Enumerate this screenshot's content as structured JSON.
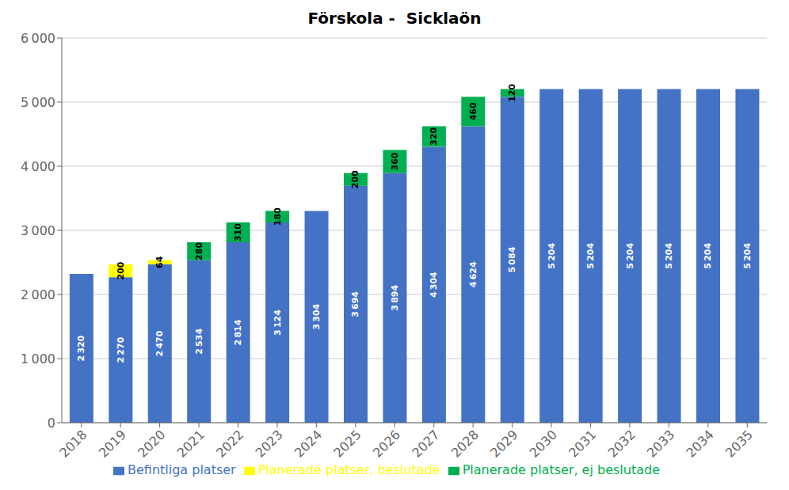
{
  "chart_data": {
    "type": "bar",
    "title": "Förskola -  Sicklaön",
    "categories": [
      "2018",
      "2019",
      "2020",
      "2021",
      "2022",
      "2023",
      "2024",
      "2025",
      "2026",
      "2027",
      "2028",
      "2029",
      "2030",
      "2031",
      "2032",
      "2033",
      "2034",
      "2035"
    ],
    "series": [
      {
        "name": "Befintliga platser",
        "color": "#4472C4",
        "values": [
          2320,
          2270,
          2470,
          2534,
          2814,
          3124,
          3304,
          3694,
          3894,
          4304,
          4624,
          5084,
          5204,
          5204,
          5204,
          5204,
          5204,
          5204
        ],
        "value_labels": [
          "2 320",
          "2 270",
          "2 470",
          "2 534",
          "2 814",
          "3 124",
          "3 304",
          "3 694",
          "3 894",
          "4 304",
          "4 624",
          "5 084",
          "5 204",
          "5 204",
          "5 204",
          "5 204",
          "5 204",
          "5 204"
        ]
      },
      {
        "name": "Planerade platser, beslutade",
        "color": "#FFFF00",
        "values": [
          0,
          200,
          64,
          0,
          0,
          0,
          0,
          0,
          0,
          0,
          0,
          0,
          0,
          0,
          0,
          0,
          0,
          0
        ],
        "value_labels": [
          null,
          "200",
          "64",
          null,
          null,
          null,
          null,
          null,
          null,
          null,
          null,
          null,
          null,
          null,
          null,
          null,
          null,
          null
        ]
      },
      {
        "name": "Planerade platser, ej beslutade",
        "color": "#00B050",
        "values": [
          0,
          0,
          0,
          280,
          310,
          180,
          0,
          200,
          360,
          320,
          460,
          120,
          0,
          0,
          0,
          0,
          0,
          0
        ],
        "value_labels": [
          null,
          null,
          null,
          "280",
          "310",
          "180",
          null,
          "200",
          "360",
          "320",
          "460",
          "120",
          null,
          null,
          null,
          null,
          null,
          null
        ]
      }
    ],
    "stacked": true,
    "data_labels": true,
    "ylim": [
      0,
      6000
    ],
    "yticks": [
      0,
      {
        "value": 1000,
        "label": "1 000"
      },
      {
        "value": 2000,
        "label": "2 000"
      },
      {
        "value": 3000,
        "label": "3 000"
      },
      {
        "value": 4000,
        "label": "4 000"
      },
      {
        "value": 5000,
        "label": "5 000"
      },
      {
        "value": 6000,
        "label": "6 000"
      }
    ],
    "grid": true,
    "legend": "bottom"
  }
}
